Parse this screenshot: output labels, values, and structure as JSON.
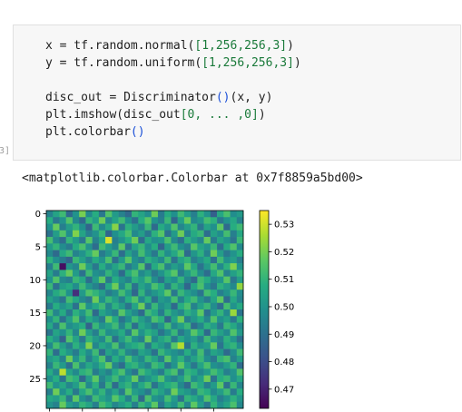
{
  "code_cell": {
    "execution_count_fragment": "3]",
    "lines": [
      [
        {
          "text": "x = tf.random.normal(",
          "color": "#212121"
        },
        {
          "text": "[1,256,256,3]",
          "color": "#1a7a3a"
        },
        {
          "text": ")",
          "color": "#212121"
        }
      ],
      [
        {
          "text": "y = tf.random.uniform(",
          "color": "#212121"
        },
        {
          "text": "[1,256,256,3]",
          "color": "#1a7a3a"
        },
        {
          "text": ")",
          "color": "#212121"
        }
      ],
      [],
      [
        {
          "text": "disc_out = Discriminator",
          "color": "#212121"
        },
        {
          "text": "()",
          "color": "#1a4fd8"
        },
        {
          "text": "(x, y)",
          "color": "#212121"
        }
      ],
      [
        {
          "text": "plt.imshow(disc_out",
          "color": "#212121"
        },
        {
          "text": "[0, ... ,0]",
          "color": "#1a7a3a"
        },
        {
          "text": ")",
          "color": "#212121"
        }
      ],
      [
        {
          "text": "plt.colorbar",
          "color": "#212121"
        },
        {
          "text": "()",
          "color": "#1a4fd8"
        }
      ]
    ]
  },
  "output": {
    "text": "<matplotlib.colorbar.Colorbar at 0x7f8859a5bd00>"
  },
  "chart_data": {
    "type": "heatmap",
    "title": "",
    "xlabel": "",
    "ylabel": "",
    "colormap": "viridis",
    "rows": 30,
    "cols": 30,
    "visible_rows": 30,
    "y_tick_labels": [
      "0",
      "5",
      "10",
      "15",
      "20",
      "25"
    ],
    "y_ticks": [
      0,
      5,
      10,
      15,
      20,
      25
    ],
    "x_tick_positions": [
      0,
      5,
      10,
      15,
      20,
      25
    ],
    "x_tick_labels_visible": false,
    "value_range": [
      0.463,
      0.535
    ],
    "colorbar": {
      "ticks": [
        0.47,
        0.48,
        0.49,
        0.5,
        0.51,
        0.52,
        0.53
      ],
      "tick_labels": [
        "0.47",
        "0.48",
        "0.49",
        "0.50",
        "0.51",
        "0.52",
        "0.53"
      ],
      "range": [
        0.463,
        0.535
      ]
    },
    "values": [
      [
        0.495,
        0.505,
        0.512,
        0.488,
        0.5,
        0.52,
        0.497,
        0.508,
        0.492,
        0.515,
        0.502,
        0.495,
        0.488,
        0.51,
        0.505,
        0.498,
        0.519,
        0.493,
        0.507,
        0.499,
        0.512,
        0.503,
        0.494,
        0.509,
        0.5,
        0.485,
        0.506,
        0.514,
        0.498,
        0.502
      ],
      [
        0.508,
        0.492,
        0.5,
        0.515,
        0.497,
        0.488,
        0.51,
        0.503,
        0.519,
        0.496,
        0.505,
        0.512,
        0.499,
        0.49,
        0.508,
        0.516,
        0.5,
        0.494,
        0.511,
        0.487,
        0.504,
        0.518,
        0.497,
        0.501,
        0.513,
        0.509,
        0.492,
        0.5,
        0.506,
        0.495
      ],
      [
        0.5,
        0.518,
        0.494,
        0.503,
        0.51,
        0.499,
        0.486,
        0.512,
        0.497,
        0.506,
        0.522,
        0.491,
        0.509,
        0.502,
        0.495,
        0.511,
        0.488,
        0.507,
        0.5,
        0.515,
        0.496,
        0.503,
        0.51,
        0.492,
        0.505,
        0.499,
        0.517,
        0.488,
        0.508,
        0.512
      ],
      [
        0.49,
        0.503,
        0.515,
        0.498,
        0.521,
        0.505,
        0.494,
        0.5,
        0.511,
        0.487,
        0.499,
        0.506,
        0.514,
        0.497,
        0.503,
        0.492,
        0.509,
        0.516,
        0.49,
        0.502,
        0.519,
        0.495,
        0.507,
        0.511,
        0.489,
        0.504,
        0.498,
        0.513,
        0.494,
        0.506
      ],
      [
        0.513,
        0.497,
        0.489,
        0.51,
        0.502,
        0.492,
        0.516,
        0.495,
        0.505,
        0.531,
        0.494,
        0.5,
        0.508,
        0.519,
        0.489,
        0.506,
        0.499,
        0.501,
        0.514,
        0.497,
        0.49,
        0.509,
        0.502,
        0.496,
        0.518,
        0.493,
        0.505,
        0.5,
        0.491,
        0.511
      ],
      [
        0.502,
        0.51,
        0.498,
        0.493,
        0.507,
        0.514,
        0.5,
        0.489,
        0.512,
        0.503,
        0.496,
        0.517,
        0.491,
        0.505,
        0.511,
        0.498,
        0.508,
        0.487,
        0.503,
        0.512,
        0.499,
        0.494,
        0.516,
        0.505,
        0.5,
        0.511,
        0.49,
        0.507,
        0.515,
        0.497
      ],
      [
        0.497,
        0.488,
        0.506,
        0.512,
        0.495,
        0.5,
        0.509,
        0.518,
        0.493,
        0.5,
        0.511,
        0.489,
        0.504,
        0.496,
        0.513,
        0.501,
        0.492,
        0.51,
        0.498,
        0.506,
        0.515,
        0.488,
        0.501,
        0.509,
        0.495,
        0.519,
        0.503,
        0.492,
        0.5,
        0.508
      ],
      [
        0.509,
        0.499,
        0.493,
        0.487,
        0.511,
        0.504,
        0.495,
        0.507,
        0.5,
        0.514,
        0.49,
        0.502,
        0.516,
        0.499,
        0.494,
        0.509,
        0.503,
        0.497,
        0.512,
        0.491,
        0.505,
        0.51,
        0.494,
        0.5,
        0.507,
        0.49,
        0.512,
        0.499,
        0.503,
        0.494
      ],
      [
        0.494,
        0.512,
        0.466,
        0.501,
        0.496,
        0.519,
        0.503,
        0.492,
        0.508,
        0.497,
        0.505,
        0.511,
        0.493,
        0.5,
        0.516,
        0.488,
        0.507,
        0.514,
        0.495,
        0.503,
        0.498,
        0.517,
        0.506,
        0.491,
        0.502,
        0.513,
        0.497,
        0.509,
        0.521,
        0.501
      ],
      [
        0.505,
        0.493,
        0.509,
        0.518,
        0.502,
        0.49,
        0.512,
        0.499,
        0.496,
        0.51,
        0.501,
        0.488,
        0.507,
        0.514,
        0.497,
        0.503,
        0.492,
        0.5,
        0.509,
        0.516,
        0.493,
        0.502,
        0.511,
        0.498,
        0.489,
        0.506,
        0.515,
        0.495,
        0.504,
        0.51
      ],
      [
        0.5,
        0.515,
        0.497,
        0.494,
        0.511,
        0.506,
        0.489,
        0.503,
        0.517,
        0.492,
        0.508,
        0.5,
        0.495,
        0.509,
        0.503,
        0.513,
        0.498,
        0.49,
        0.504,
        0.499,
        0.51,
        0.496,
        0.488,
        0.512,
        0.507,
        0.497,
        0.501,
        0.516,
        0.492,
        0.503
      ],
      [
        0.511,
        0.49,
        0.503,
        0.507,
        0.498,
        0.512,
        0.501,
        0.495,
        0.488,
        0.506,
        0.519,
        0.497,
        0.511,
        0.491,
        0.505,
        0.499,
        0.514,
        0.508,
        0.493,
        0.51,
        0.502,
        0.487,
        0.505,
        0.514,
        0.499,
        0.492,
        0.509,
        0.503,
        0.497,
        0.523
      ],
      [
        0.496,
        0.507,
        0.512,
        0.499,
        0.473,
        0.502,
        0.515,
        0.51,
        0.503,
        0.493,
        0.498,
        0.513,
        0.502,
        0.487,
        0.51,
        0.495,
        0.501,
        0.506,
        0.517,
        0.492,
        0.511,
        0.503,
        0.498,
        0.491,
        0.513,
        0.508,
        0.494,
        0.5,
        0.511,
        0.498
      ],
      [
        0.504,
        0.498,
        0.491,
        0.513,
        0.506,
        0.497,
        0.492,
        0.519,
        0.499,
        0.511,
        0.503,
        0.494,
        0.508,
        0.515,
        0.497,
        0.509,
        0.49,
        0.502,
        0.499,
        0.513,
        0.495,
        0.507,
        0.512,
        0.5,
        0.493,
        0.505,
        0.517,
        0.489,
        0.506,
        0.496
      ],
      [
        0.493,
        0.508,
        0.5,
        0.505,
        0.49,
        0.517,
        0.499,
        0.506,
        0.512,
        0.496,
        0.509,
        0.502,
        0.491,
        0.505,
        0.519,
        0.493,
        0.511,
        0.498,
        0.503,
        0.488,
        0.508,
        0.514,
        0.495,
        0.504,
        0.511,
        0.498,
        0.489,
        0.513,
        0.5,
        0.507
      ],
      [
        0.512,
        0.496,
        0.507,
        0.492,
        0.509,
        0.501,
        0.513,
        0.488,
        0.505,
        0.499,
        0.494,
        0.516,
        0.504,
        0.497,
        0.488,
        0.512,
        0.506,
        0.493,
        0.51,
        0.501,
        0.496,
        0.509,
        0.503,
        0.517,
        0.49,
        0.502,
        0.51,
        0.497,
        0.524,
        0.491
      ],
      [
        0.499,
        0.51,
        0.49,
        0.503,
        0.515,
        0.494,
        0.507,
        0.5,
        0.493,
        0.518,
        0.507,
        0.491,
        0.499,
        0.512,
        0.503,
        0.496,
        0.514,
        0.509,
        0.487,
        0.505,
        0.519,
        0.494,
        0.501,
        0.508,
        0.496,
        0.515,
        0.499,
        0.504,
        0.492,
        0.509
      ],
      [
        0.506,
        0.493,
        0.514,
        0.498,
        0.502,
        0.508,
        0.486,
        0.511,
        0.5,
        0.504,
        0.512,
        0.496,
        0.51,
        0.49,
        0.506,
        0.501,
        0.493,
        0.5,
        0.513,
        0.497,
        0.503,
        0.511,
        0.489,
        0.496,
        0.509,
        0.503,
        0.492,
        0.511,
        0.506,
        0.497
      ],
      [
        0.491,
        0.505,
        0.499,
        0.51,
        0.496,
        0.519,
        0.503,
        0.494,
        0.511,
        0.498,
        0.501,
        0.507,
        0.493,
        0.516,
        0.5,
        0.509,
        0.504,
        0.491,
        0.499,
        0.511,
        0.492,
        0.5,
        0.516,
        0.507,
        0.488,
        0.511,
        0.504,
        0.497,
        0.515,
        0.502
      ],
      [
        0.508,
        0.5,
        0.486,
        0.515,
        0.505,
        0.492,
        0.51,
        0.502,
        0.497,
        0.513,
        0.49,
        0.503,
        0.512,
        0.499,
        0.494,
        0.518,
        0.497,
        0.505,
        0.51,
        0.493,
        0.506,
        0.499,
        0.503,
        0.494,
        0.512,
        0.5,
        0.495,
        0.509,
        0.501,
        0.49
      ],
      [
        0.497,
        0.513,
        0.503,
        0.494,
        0.509,
        0.5,
        0.521,
        0.496,
        0.506,
        0.501,
        0.514,
        0.495,
        0.504,
        0.508,
        0.511,
        0.492,
        0.508,
        0.502,
        0.495,
        0.516,
        0.527,
        0.491,
        0.509,
        0.5,
        0.503,
        0.518,
        0.491,
        0.506,
        0.51,
        0.498
      ],
      [
        0.51,
        0.489,
        0.508,
        0.501,
        0.493,
        0.507,
        0.498,
        0.512,
        0.489,
        0.505,
        0.499,
        0.51,
        0.496,
        0.492,
        0.505,
        0.501,
        0.49,
        0.511,
        0.503,
        0.499,
        0.495,
        0.508,
        0.497,
        0.513,
        0.494,
        0.505,
        0.501,
        0.488,
        0.498,
        0.512
      ],
      [
        0.502,
        0.506,
        0.495,
        0.519,
        0.5,
        0.511,
        0.494,
        0.505,
        0.515,
        0.493,
        0.508,
        0.5,
        0.514,
        0.503,
        0.497,
        0.511,
        0.505,
        0.494,
        0.516,
        0.501,
        0.509,
        0.496,
        0.504,
        0.511,
        0.498,
        0.492,
        0.51,
        0.514,
        0.495,
        0.503
      ],
      [
        0.495,
        0.511,
        0.502,
        0.49,
        0.514,
        0.496,
        0.506,
        0.5,
        0.509,
        0.518,
        0.496,
        0.489,
        0.507,
        0.51,
        0.501,
        0.495,
        0.512,
        0.508,
        0.491,
        0.5,
        0.517,
        0.503,
        0.492,
        0.505,
        0.514,
        0.499,
        0.496,
        0.503,
        0.51,
        0.489
      ],
      [
        0.507,
        0.496,
        0.528,
        0.505,
        0.497,
        0.509,
        0.512,
        0.493,
        0.501,
        0.495,
        0.507,
        0.514,
        0.498,
        0.491,
        0.513,
        0.506,
        0.499,
        0.493,
        0.509,
        0.514,
        0.493,
        0.51,
        0.507,
        0.497,
        0.502,
        0.513,
        0.506,
        0.494,
        0.5,
        0.515
      ],
      [
        0.499,
        0.508,
        0.491,
        0.513,
        0.509,
        0.488,
        0.503,
        0.517,
        0.496,
        0.504,
        0.512,
        0.499,
        0.505,
        0.518,
        0.494,
        0.5,
        0.506,
        0.515,
        0.5,
        0.495,
        0.502,
        0.513,
        0.498,
        0.504,
        0.519,
        0.491,
        0.508,
        0.511,
        0.499,
        0.506
      ],
      [
        0.512,
        0.5,
        0.506,
        0.496,
        0.503,
        0.515,
        0.497,
        0.509,
        0.492,
        0.511,
        0.489,
        0.505,
        0.51,
        0.497,
        0.506,
        0.513,
        0.491,
        0.502,
        0.508,
        0.511,
        0.497,
        0.488,
        0.512,
        0.506,
        0.494,
        0.502,
        0.517,
        0.49,
        0.511,
        0.496
      ],
      [
        0.494,
        0.519,
        0.499,
        0.508,
        0.492,
        0.506,
        0.514,
        0.501,
        0.51,
        0.497,
        0.505,
        0.493,
        0.516,
        0.503,
        0.499,
        0.492,
        0.51,
        0.504,
        0.496,
        0.519,
        0.505,
        0.501,
        0.494,
        0.511,
        0.508,
        0.497,
        0.503,
        0.512,
        0.493,
        0.508
      ],
      [
        0.506,
        0.503,
        0.511,
        0.493,
        0.517,
        0.499,
        0.493,
        0.512,
        0.505,
        0.5,
        0.516,
        0.508,
        0.495,
        0.511,
        0.488,
        0.514,
        0.5,
        0.497,
        0.513,
        0.502,
        0.49,
        0.51,
        0.506,
        0.499,
        0.515,
        0.506,
        0.494,
        0.5,
        0.509,
        0.501
      ],
      [
        0.5,
        0.495,
        0.518,
        0.503,
        0.498,
        0.51,
        0.505,
        0.494,
        0.513,
        0.507,
        0.496,
        0.502,
        0.508,
        0.494,
        0.511,
        0.503,
        0.517,
        0.492,
        0.505,
        0.499,
        0.512,
        0.496,
        0.517,
        0.503,
        0.492,
        0.51,
        0.499,
        0.505,
        0.514,
        0.497
      ]
    ]
  }
}
